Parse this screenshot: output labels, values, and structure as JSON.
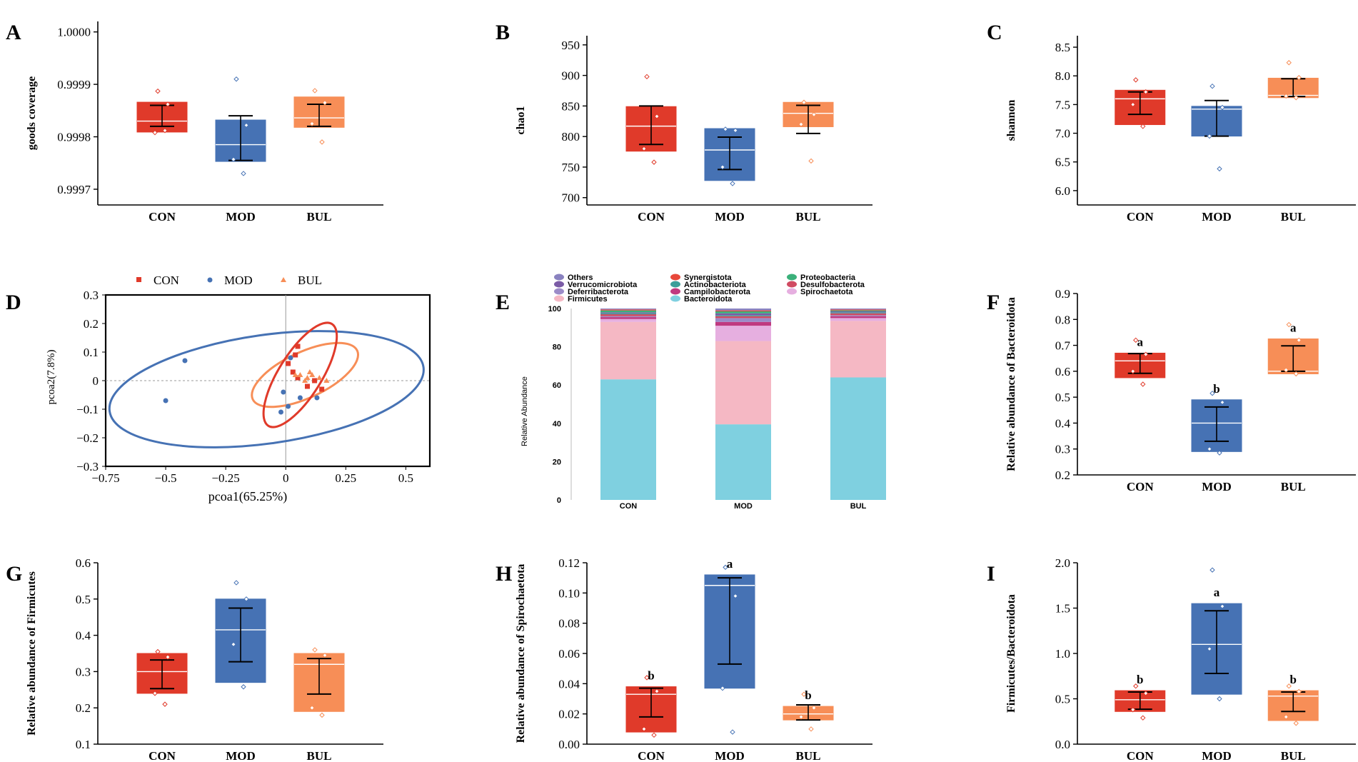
{
  "colors": {
    "CON": "#e03a2a",
    "MOD": "#4672b4",
    "BUL": "#f78e57",
    "axis": "#000000",
    "whisker": "#000000",
    "median": "#ffffff"
  },
  "chart_data": [
    {
      "id": "A",
      "type": "box",
      "panel_label": "A",
      "ylabel": "goods coverage",
      "categories": [
        "CON",
        "MOD",
        "BUL"
      ],
      "ylim": [
        0.99967,
        1.00002
      ],
      "yticks": [
        0.9997,
        0.9998,
        0.9999,
        1.0
      ],
      "ytick_labels": [
        "0.9997",
        "0.9998",
        "0.9999",
        "1.0000"
      ],
      "boxes": [
        {
          "q1": 0.999809,
          "q3": 0.999866,
          "median": 0.99983,
          "mean": 0.999838,
          "w_low": 0.99982,
          "w_high": 0.99986,
          "points": [
            0.999887,
            0.999862,
            0.999808,
            0.999812
          ],
          "letter": ""
        },
        {
          "q1": 0.999753,
          "q3": 0.999832,
          "median": 0.999785,
          "mean": 0.999795,
          "w_low": 0.999755,
          "w_high": 0.99984,
          "points": [
            0.99991,
            0.999822,
            0.999757,
            0.99973
          ],
          "letter": ""
        },
        {
          "q1": 0.999818,
          "q3": 0.999876,
          "median": 0.999836,
          "mean": 0.999847,
          "w_low": 0.99982,
          "w_high": 0.999862,
          "points": [
            0.999888,
            0.999865,
            0.999825,
            0.99979
          ],
          "letter": ""
        }
      ]
    },
    {
      "id": "B",
      "type": "box",
      "panel_label": "B",
      "ylabel": "chao1",
      "categories": [
        "CON",
        "MOD",
        "BUL"
      ],
      "ylim": [
        688,
        965
      ],
      "yticks": [
        700,
        750,
        800,
        850,
        900,
        950
      ],
      "ytick_labels": [
        "700",
        "750",
        "800",
        "850",
        "900",
        "950"
      ],
      "boxes": [
        {
          "q1": 776,
          "q3": 849,
          "median": 817,
          "mean": 820,
          "w_low": 787,
          "w_high": 850,
          "points": [
            898,
            833,
            780,
            758
          ],
          "letter": ""
        },
        {
          "q1": 728,
          "q3": 813,
          "median": 778,
          "mean": 772,
          "w_low": 746,
          "w_high": 799,
          "points": [
            812,
            810,
            750,
            723
          ],
          "letter": ""
        },
        {
          "q1": 816,
          "q3": 856,
          "median": 838,
          "mean": 828,
          "w_low": 805,
          "w_high": 851,
          "points": [
            856,
            836,
            820,
            760
          ],
          "letter": ""
        }
      ]
    },
    {
      "id": "C",
      "type": "box",
      "panel_label": "C",
      "ylabel": "shannon",
      "categories": [
        "CON",
        "MOD",
        "BUL"
      ],
      "ylim": [
        5.75,
        8.7
      ],
      "yticks": [
        6.0,
        6.5,
        7.0,
        7.5,
        8.0,
        8.5
      ],
      "ytick_labels": [
        "6.0",
        "6.5",
        "7.0",
        "7.5",
        "8.0",
        "8.5"
      ],
      "boxes": [
        {
          "q1": 7.15,
          "q3": 7.75,
          "median": 7.6,
          "mean": 7.53,
          "w_low": 7.33,
          "w_high": 7.72,
          "points": [
            7.93,
            7.72,
            7.5,
            7.12
          ],
          "letter": ""
        },
        {
          "q1": 6.95,
          "q3": 7.47,
          "median": 7.42,
          "mean": 7.26,
          "w_low": 6.95,
          "w_high": 7.57,
          "points": [
            7.82,
            7.45,
            6.95,
            6.38
          ],
          "letter": ""
        },
        {
          "q1": 7.62,
          "q3": 7.96,
          "median": 7.66,
          "mean": 7.8,
          "w_low": 7.64,
          "w_high": 7.95,
          "points": [
            8.23,
            7.97,
            7.65,
            7.62
          ],
          "letter": ""
        }
      ]
    },
    {
      "id": "D",
      "type": "scatter",
      "panel_label": "D",
      "xlabel": "pcoa1(65.25%)",
      "ylabel": "pcoa2(7.8%)",
      "xlim": [
        -0.75,
        0.6
      ],
      "ylim": [
        -0.3,
        0.3
      ],
      "xticks": [
        -0.75,
        -0.5,
        -0.25,
        0,
        0.25,
        0.5
      ],
      "xtick_labels": [
        "−0.75",
        "−0.5",
        "−0.25",
        "0",
        "0.25",
        "0.5"
      ],
      "yticks": [
        -0.3,
        -0.2,
        -0.1,
        0,
        0.1,
        0.2,
        0.3
      ],
      "ytick_labels": [
        "−0.3",
        "−0.2",
        "−0.1",
        "0",
        "0.1",
        "0.2",
        "0.3"
      ],
      "legend": [
        "CON",
        "MOD",
        "BUL"
      ],
      "series": [
        {
          "name": "CON",
          "marker": "square",
          "points": [
            [
              0.04,
              0.09
            ],
            [
              0.01,
              0.06
            ],
            [
              0.03,
              0.03
            ],
            [
              0.05,
              0.01
            ],
            [
              0.12,
              0.0
            ],
            [
              0.09,
              -0.02
            ],
            [
              0.15,
              -0.03
            ],
            [
              0.05,
              0.12
            ]
          ],
          "ellipse": {
            "cx": 0.06,
            "cy": 0.02,
            "rx": 0.25,
            "ry": 0.075,
            "angle_deg": -58
          }
        },
        {
          "name": "MOD",
          "marker": "circle",
          "points": [
            [
              -0.42,
              0.07
            ],
            [
              -0.5,
              -0.07
            ],
            [
              -0.02,
              -0.11
            ],
            [
              -0.01,
              -0.04
            ],
            [
              0.01,
              -0.09
            ],
            [
              0.06,
              -0.06
            ],
            [
              0.13,
              -0.06
            ],
            [
              0.02,
              0.08
            ]
          ],
          "ellipse": {
            "cx": -0.08,
            "cy": -0.03,
            "rx": 0.66,
            "ry": 0.19,
            "angle_deg": -8
          }
        },
        {
          "name": "BUL",
          "marker": "triangle",
          "points": [
            [
              0.06,
              0.02
            ],
            [
              0.09,
              0.01
            ],
            [
              0.04,
              0.02
            ],
            [
              0.1,
              0.03
            ],
            [
              0.08,
              0.0
            ],
            [
              0.14,
              0.01
            ],
            [
              0.17,
              0.0
            ],
            [
              0.11,
              0.02
            ]
          ],
          "ellipse": {
            "cx": 0.08,
            "cy": 0.02,
            "rx": 0.24,
            "ry": 0.08,
            "angle_deg": -25
          }
        }
      ]
    },
    {
      "id": "E",
      "type": "stacked-bar",
      "panel_label": "E",
      "ylabel": "Relative Abundance",
      "categories": [
        "CON",
        "MOD",
        "BUL"
      ],
      "ylim": [
        0,
        100
      ],
      "yticks": [
        0,
        20,
        40,
        60,
        80,
        100
      ],
      "ytick_labels": [
        "0",
        "20",
        "40",
        "60",
        "80",
        "100"
      ],
      "legend_order": [
        "Others",
        "Synergistota",
        "Proteobacteria",
        "Verrucomicrobiota",
        "Actinobacteriota",
        "Desulfobacterota",
        "Deferribacterota",
        "Campilobacterota",
        "Spirochaetota",
        "Firmicutes",
        "Bacteroidota"
      ],
      "series": [
        {
          "name": "Bacteroidota",
          "color": "#7fd0e0",
          "values": [
            63,
            39.5,
            64
          ]
        },
        {
          "name": "Firmicutes",
          "color": "#f5b8c4",
          "values": [
            30,
            43.5,
            29.5
          ]
        },
        {
          "name": "Spirochaetota",
          "color": "#e6afe0",
          "values": [
            1.5,
            8,
            1.5
          ]
        },
        {
          "name": "Campilobacterota",
          "color": "#c03a80",
          "values": [
            1,
            2,
            1
          ]
        },
        {
          "name": "Deferribacterota",
          "color": "#9c8bc8",
          "values": [
            0.5,
            2,
            0.5
          ]
        },
        {
          "name": "Desulfobacterota",
          "color": "#d04b62",
          "values": [
            1,
            1,
            1
          ]
        },
        {
          "name": "Actinobacteriota",
          "color": "#3c9f9a",
          "values": [
            0.5,
            0.5,
            0.5
          ]
        },
        {
          "name": "Verrucomicrobiota",
          "color": "#7b5ba6",
          "values": [
            0.5,
            1,
            0.5
          ]
        },
        {
          "name": "Proteobacteria",
          "color": "#3bb07a",
          "values": [
            1,
            1,
            0.5
          ]
        },
        {
          "name": "Synergistota",
          "color": "#e8483a",
          "values": [
            0.5,
            0.5,
            0.5
          ]
        },
        {
          "name": "Others",
          "color": "#8a82c0",
          "values": [
            0.5,
            1,
            0.5
          ]
        }
      ]
    },
    {
      "id": "F",
      "type": "box",
      "panel_label": "F",
      "ylabel": "Relative abundance of Bacteroidota",
      "categories": [
        "CON",
        "MOD",
        "BUL"
      ],
      "ylim": [
        0.2,
        0.9
      ],
      "yticks": [
        0.2,
        0.3,
        0.4,
        0.5,
        0.6,
        0.7,
        0.8,
        0.9
      ],
      "ytick_labels": [
        "0.2",
        "0.3",
        "0.4",
        "0.5",
        "0.6",
        "0.7",
        "0.8",
        "0.9"
      ],
      "boxes": [
        {
          "q1": 0.575,
          "q3": 0.67,
          "median": 0.64,
          "mean": 0.63,
          "w_low": 0.592,
          "w_high": 0.668,
          "points": [
            0.72,
            0.665,
            0.6,
            0.55
          ],
          "letter": "a"
        },
        {
          "q1": 0.29,
          "q3": 0.49,
          "median": 0.4,
          "mean": 0.395,
          "w_low": 0.33,
          "w_high": 0.462,
          "points": [
            0.515,
            0.48,
            0.3,
            0.285
          ],
          "letter": "b"
        },
        {
          "q1": 0.59,
          "q3": 0.725,
          "median": 0.6,
          "mean": 0.65,
          "w_low": 0.6,
          "w_high": 0.698,
          "points": [
            0.78,
            0.72,
            0.605,
            0.59
          ],
          "letter": "a"
        }
      ]
    },
    {
      "id": "G",
      "type": "box",
      "panel_label": "G",
      "ylabel": "Relative abundance of Firmicutes",
      "categories": [
        "CON",
        "MOD",
        "BUL"
      ],
      "ylim": [
        0.1,
        0.6
      ],
      "yticks": [
        0.1,
        0.2,
        0.3,
        0.4,
        0.5,
        0.6
      ],
      "ytick_labels": [
        "0.1",
        "0.2",
        "0.3",
        "0.4",
        "0.5",
        "0.6"
      ],
      "boxes": [
        {
          "q1": 0.24,
          "q3": 0.35,
          "median": 0.3,
          "mean": 0.295,
          "w_low": 0.253,
          "w_high": 0.332,
          "points": [
            0.355,
            0.34,
            0.24,
            0.21
          ],
          "letter": ""
        },
        {
          "q1": 0.27,
          "q3": 0.5,
          "median": 0.415,
          "mean": 0.4,
          "w_low": 0.327,
          "w_high": 0.475,
          "points": [
            0.545,
            0.5,
            0.375,
            0.258
          ],
          "letter": ""
        },
        {
          "q1": 0.19,
          "q3": 0.35,
          "median": 0.32,
          "mean": 0.285,
          "w_low": 0.238,
          "w_high": 0.336,
          "points": [
            0.36,
            0.345,
            0.2,
            0.18
          ],
          "letter": ""
        }
      ]
    },
    {
      "id": "H",
      "type": "box",
      "panel_label": "H",
      "ylabel": "Relative abundance of Spirochaetota",
      "categories": [
        "CON",
        "MOD",
        "BUL"
      ],
      "ylim": [
        0,
        0.12
      ],
      "yticks": [
        0,
        0.02,
        0.04,
        0.06,
        0.08,
        0.1,
        0.12
      ],
      "ytick_labels": [
        "0.00",
        "0.02",
        "0.04",
        "0.06",
        "0.08",
        "0.10",
        "0.12"
      ],
      "boxes": [
        {
          "q1": 0.008,
          "q3": 0.038,
          "median": 0.033,
          "mean": 0.026,
          "w_low": 0.018,
          "w_high": 0.037,
          "points": [
            0.044,
            0.035,
            0.01,
            0.006
          ],
          "letter": "b"
        },
        {
          "q1": 0.037,
          "q3": 0.112,
          "median": 0.105,
          "mean": 0.08,
          "w_low": 0.053,
          "w_high": 0.11,
          "points": [
            0.117,
            0.098,
            0.037,
            0.008
          ],
          "letter": "a"
        },
        {
          "q1": 0.016,
          "q3": 0.025,
          "median": 0.02,
          "mean": 0.021,
          "w_low": 0.016,
          "w_high": 0.026,
          "points": [
            0.033,
            0.024,
            0.018,
            0.01
          ],
          "letter": "b"
        }
      ]
    },
    {
      "id": "I",
      "type": "box",
      "panel_label": "I",
      "ylabel": "Firmicutes/Bacteroidota",
      "categories": [
        "CON",
        "MOD",
        "BUL"
      ],
      "ylim": [
        0,
        2.0
      ],
      "yticks": [
        0,
        0.5,
        1.0,
        1.5,
        2.0
      ],
      "ytick_labels": [
        "0.0",
        "0.5",
        "1.0",
        "1.5",
        "2.0"
      ],
      "boxes": [
        {
          "q1": 0.36,
          "q3": 0.59,
          "median": 0.49,
          "mean": 0.475,
          "w_low": 0.385,
          "w_high": 0.575,
          "points": [
            0.64,
            0.56,
            0.38,
            0.29
          ],
          "letter": "b"
        },
        {
          "q1": 0.55,
          "q3": 1.55,
          "median": 1.1,
          "mean": 1.12,
          "w_low": 0.78,
          "w_high": 1.47,
          "points": [
            1.92,
            1.52,
            1.05,
            0.5
          ],
          "letter": "a"
        },
        {
          "q1": 0.26,
          "q3": 0.59,
          "median": 0.53,
          "mean": 0.46,
          "w_low": 0.36,
          "w_high": 0.575,
          "points": [
            0.64,
            0.58,
            0.3,
            0.23
          ],
          "letter": "b"
        }
      ]
    }
  ]
}
